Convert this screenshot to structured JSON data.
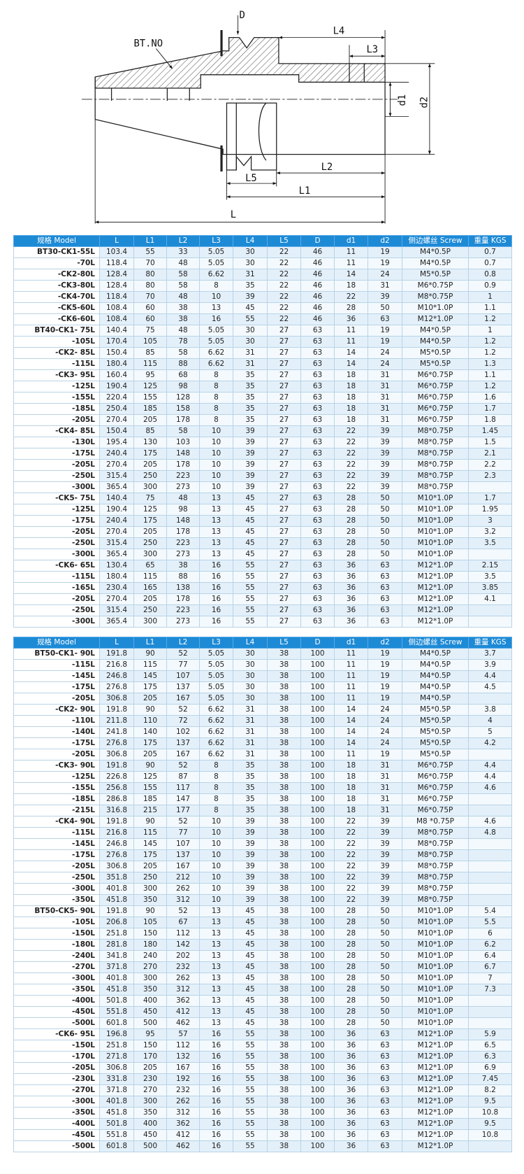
{
  "drawing": {
    "labels": {
      "D": "D",
      "bt_no": "BT.NO",
      "L4": "L4",
      "L3": "L3",
      "d1": "d1",
      "d2": "d2",
      "L2": "L2",
      "L5": "L5",
      "L1": "L1",
      "L": "L"
    }
  },
  "tables": [
    {
      "header": [
        "规格 Model",
        "L",
        "L1",
        "L2",
        "L3",
        "L4",
        "L5",
        "D",
        "d1",
        "d2",
        "侧边螺丝 Screw",
        "重量 KGS"
      ],
      "rows": [
        [
          "BT30-CK1-55L",
          103.4,
          55,
          33,
          5.05,
          30,
          22,
          46,
          11,
          19,
          "M4*0.5P",
          0.7
        ],
        [
          "-70L",
          118.4,
          70,
          48,
          5.05,
          30,
          22,
          46,
          11,
          19,
          "M4*0.5P",
          0.7
        ],
        [
          "-CK2-80L",
          128.4,
          80,
          58,
          6.62,
          31,
          22,
          46,
          14,
          24,
          "M5*0.5P",
          0.8
        ],
        [
          "-CK3-80L",
          128.4,
          80,
          58,
          8,
          35,
          22,
          46,
          18,
          31,
          "M6*0.75P",
          0.9
        ],
        [
          "-CK4-70L",
          118.4,
          70,
          48,
          10,
          39,
          22,
          46,
          22,
          39,
          "M8*0.75P",
          1
        ],
        [
          "-CK5-60L",
          108.4,
          60,
          38,
          13,
          45,
          22,
          46,
          28,
          50,
          "M10*1.0P",
          1.1
        ],
        [
          "-CK6-60L",
          108.4,
          60,
          38,
          16,
          55,
          22,
          46,
          36,
          63,
          "M12*1.0P",
          1.2
        ],
        [
          "BT40-CK1- 75L",
          140.4,
          75,
          48,
          5.05,
          30,
          27,
          63,
          11,
          19,
          "M4*0.5P",
          1
        ],
        [
          "-105L",
          170.4,
          105,
          78,
          5.05,
          30,
          27,
          63,
          11,
          19,
          "M4*0.5P",
          1.2
        ],
        [
          "-CK2- 85L",
          150.4,
          85,
          58,
          6.62,
          31,
          27,
          63,
          14,
          24,
          "M5*0.5P",
          1.2
        ],
        [
          "-115L",
          180.4,
          115,
          88,
          6.62,
          31,
          27,
          63,
          14,
          24,
          "M5*0.5P",
          1.3
        ],
        [
          "-CK3- 95L",
          160.4,
          95,
          68,
          8,
          35,
          27,
          63,
          18,
          31,
          "M6*0.75P",
          1.1
        ],
        [
          "-125L",
          190.4,
          125,
          98,
          8,
          35,
          27,
          63,
          18,
          31,
          "M6*0.75P",
          1.2
        ],
        [
          "-155L",
          220.4,
          155,
          128,
          8,
          35,
          27,
          63,
          18,
          31,
          "M6*0.75P",
          1.6
        ],
        [
          "-185L",
          250.4,
          185,
          158,
          8,
          35,
          27,
          63,
          18,
          31,
          "M6*0.75P",
          1.7
        ],
        [
          "-205L",
          270.4,
          205,
          178,
          8,
          35,
          27,
          63,
          18,
          31,
          "M6*0.75P",
          1.8
        ],
        [
          "-CK4- 85L",
          150.4,
          85,
          58,
          10,
          39,
          27,
          63,
          22,
          39,
          "M8*0.75P",
          1.45
        ],
        [
          "-130L",
          195.4,
          130,
          103,
          10,
          39,
          27,
          63,
          22,
          39,
          "M8*0.75P",
          1.5
        ],
        [
          "-175L",
          240.4,
          175,
          148,
          10,
          39,
          27,
          63,
          22,
          39,
          "M8*0.75P",
          2.1
        ],
        [
          "-205L",
          270.4,
          205,
          178,
          10,
          39,
          27,
          63,
          22,
          39,
          "M8*0.75P",
          2.2
        ],
        [
          "-250L",
          315.4,
          250,
          223,
          10,
          39,
          27,
          63,
          22,
          39,
          "M8*0.75P",
          2.3
        ],
        [
          "-300L",
          365.4,
          300,
          273,
          10,
          39,
          27,
          63,
          22,
          39,
          "M8*0.75P",
          null
        ],
        [
          "-CK5- 75L",
          140.4,
          75,
          48,
          13,
          45,
          27,
          63,
          28,
          50,
          "M10*1.0P",
          1.7
        ],
        [
          "-125L",
          190.4,
          125,
          98,
          13,
          45,
          27,
          63,
          28,
          50,
          "M10*1.0P",
          1.95
        ],
        [
          "-175L",
          240.4,
          175,
          148,
          13,
          45,
          27,
          63,
          28,
          50,
          "M10*1.0P",
          3
        ],
        [
          "-205L",
          270.4,
          205,
          178,
          13,
          45,
          27,
          63,
          28,
          50,
          "M10*1.0P",
          3.2
        ],
        [
          "-250L",
          315.4,
          250,
          223,
          13,
          45,
          27,
          63,
          28,
          50,
          "M10*1.0P",
          3.5
        ],
        [
          "-300L",
          365.4,
          300,
          273,
          13,
          45,
          27,
          63,
          28,
          50,
          "M10*1.0P",
          null
        ],
        [
          "-CK6- 65L",
          130.4,
          65,
          38,
          16,
          55,
          27,
          63,
          36,
          63,
          "M12*1.0P",
          2.15
        ],
        [
          "-115L",
          180.4,
          115,
          88,
          16,
          55,
          27,
          63,
          36,
          63,
          "M12*1.0P",
          3.5
        ],
        [
          "-165L",
          230.4,
          165,
          138,
          16,
          55,
          27,
          63,
          36,
          63,
          "M12*1.0P",
          3.85
        ],
        [
          "-205L",
          270.4,
          205,
          178,
          16,
          55,
          27,
          63,
          36,
          63,
          "M12*1.0P",
          4.1
        ],
        [
          "-250L",
          315.4,
          250,
          223,
          16,
          55,
          27,
          63,
          36,
          63,
          "M12*1.0P",
          null
        ],
        [
          "-300L",
          365.4,
          300,
          273,
          16,
          55,
          27,
          63,
          36,
          63,
          "M12*1.0P",
          null
        ]
      ]
    },
    {
      "header": [
        "规格 Model",
        "L",
        "L1",
        "L2",
        "L3",
        "L4",
        "L5",
        "D",
        "d1",
        "d2",
        "侧边螺丝 Screw",
        "重量 KGS"
      ],
      "rows": [
        [
          "BT50-CK1- 90L",
          191.8,
          90,
          52,
          5.05,
          30,
          38,
          100,
          11,
          19,
          "M4*0.5P",
          3.7
        ],
        [
          "-115L",
          216.8,
          115,
          77,
          5.05,
          30,
          38,
          100,
          11,
          19,
          "M4*0.5P",
          3.9
        ],
        [
          "-145L",
          246.8,
          145,
          107,
          5.05,
          30,
          38,
          100,
          11,
          19,
          "M4*0.5P",
          4.4
        ],
        [
          "-175L",
          276.8,
          175,
          137,
          5.05,
          30,
          38,
          100,
          11,
          19,
          "M4*0.5P",
          4.5
        ],
        [
          "-205L",
          306.8,
          205,
          167,
          5.05,
          30,
          38,
          100,
          11,
          19,
          "M4*0.5P",
          null
        ],
        [
          "-CK2- 90L",
          191.8,
          90,
          52,
          6.62,
          31,
          38,
          100,
          14,
          24,
          "M5*0.5P",
          3.8
        ],
        [
          "-110L",
          211.8,
          110,
          72,
          6.62,
          31,
          38,
          100,
          14,
          24,
          "M5*0.5P",
          4
        ],
        [
          "-140L",
          241.8,
          140,
          102,
          6.62,
          31,
          38,
          100,
          14,
          24,
          "M5*0.5P",
          5
        ],
        [
          "-175L",
          276.8,
          175,
          137,
          6.62,
          31,
          38,
          100,
          14,
          24,
          "M5*0.5P",
          4.2
        ],
        [
          "-205L",
          306.8,
          205,
          167,
          6.62,
          31,
          38,
          100,
          11,
          19,
          "M5*0.5P",
          null
        ],
        [
          "-CK3- 90L",
          191.8,
          90,
          52,
          8,
          35,
          38,
          100,
          18,
          31,
          "M6*0.75P",
          4.4
        ],
        [
          "-125L",
          226.8,
          125,
          87,
          8,
          35,
          38,
          100,
          18,
          31,
          "M6*0.75P",
          4.4
        ],
        [
          "-155L",
          256.8,
          155,
          117,
          8,
          35,
          38,
          100,
          18,
          31,
          "M6*0.75P",
          4.6
        ],
        [
          "-185L",
          286.8,
          185,
          147,
          8,
          35,
          38,
          100,
          18,
          31,
          "M6*0.75P",
          null
        ],
        [
          "-215L",
          316.8,
          215,
          177,
          8,
          35,
          38,
          100,
          18,
          31,
          "M6*0.75P",
          null
        ],
        [
          "-CK4- 90L",
          191.8,
          90,
          52,
          10,
          39,
          38,
          100,
          22,
          39,
          "M8 *0.75P",
          4.6
        ],
        [
          "-115L",
          216.8,
          115,
          77,
          10,
          39,
          38,
          100,
          22,
          39,
          "M8*0.75P",
          4.8
        ],
        [
          "-145L",
          246.8,
          145,
          107,
          10,
          39,
          38,
          100,
          22,
          39,
          "M8*0.75P",
          null
        ],
        [
          "-175L",
          276.8,
          175,
          137,
          10,
          39,
          38,
          100,
          22,
          39,
          "M8*0.75P",
          null
        ],
        [
          "-205L",
          306.8,
          205,
          167,
          10,
          39,
          38,
          100,
          22,
          39,
          "M8*0.75P",
          null
        ],
        [
          "-250L",
          351.8,
          250,
          212,
          10,
          39,
          38,
          100,
          22,
          39,
          "M8*0.75P",
          null
        ],
        [
          "-300L",
          401.8,
          300,
          262,
          10,
          39,
          38,
          100,
          22,
          39,
          "M8*0.75P",
          null
        ],
        [
          "-350L",
          451.8,
          350,
          312,
          10,
          39,
          38,
          100,
          22,
          39,
          "M8*0.75P",
          null
        ],
        [
          "BT50-CK5- 90L",
          191.8,
          90,
          52,
          13,
          45,
          38,
          100,
          28,
          50,
          "M10*1.0P",
          5.4
        ],
        [
          "-105L",
          206.8,
          105,
          67,
          13,
          45,
          38,
          100,
          28,
          50,
          "M10*1.0P",
          5.5
        ],
        [
          "-150L",
          251.8,
          150,
          112,
          13,
          45,
          38,
          100,
          28,
          50,
          "M10*1.0P",
          6
        ],
        [
          "-180L",
          281.8,
          180,
          142,
          13,
          45,
          38,
          100,
          28,
          50,
          "M10*1.0P",
          6.2
        ],
        [
          "-240L",
          341.8,
          240,
          202,
          13,
          45,
          38,
          100,
          28,
          50,
          "M10*1.0P",
          6.4
        ],
        [
          "-270L",
          371.8,
          270,
          232,
          13,
          45,
          38,
          100,
          28,
          50,
          "M10*1.0P",
          6.7
        ],
        [
          "-300L",
          401.8,
          300,
          262,
          13,
          45,
          38,
          100,
          28,
          50,
          "M10*1.0P",
          7
        ],
        [
          "-350L",
          451.8,
          350,
          312,
          13,
          45,
          38,
          100,
          28,
          50,
          "M10*1.0P",
          7.3
        ],
        [
          "-400L",
          501.8,
          400,
          362,
          13,
          45,
          38,
          100,
          28,
          50,
          "M10*1.0P",
          null
        ],
        [
          "-450L",
          551.8,
          450,
          412,
          13,
          45,
          38,
          100,
          28,
          50,
          "M10*1.0P",
          null
        ],
        [
          "-500L",
          601.8,
          500,
          462,
          13,
          45,
          38,
          100,
          28,
          50,
          "M10*1.0P",
          null
        ],
        [
          "-CK6- 95L",
          196.8,
          95,
          57,
          16,
          55,
          38,
          100,
          36,
          63,
          "M12*1.0P",
          5.9
        ],
        [
          "-150L",
          251.8,
          150,
          112,
          16,
          55,
          38,
          100,
          36,
          63,
          "M12*1.0P",
          6.5
        ],
        [
          "-170L",
          271.8,
          170,
          132,
          16,
          55,
          38,
          100,
          36,
          63,
          "M12*1.0P",
          6.3
        ],
        [
          "-205L",
          306.8,
          205,
          167,
          16,
          55,
          38,
          100,
          36,
          63,
          "M12*1.0P",
          6.9
        ],
        [
          "-230L",
          331.8,
          230,
          192,
          16,
          55,
          38,
          100,
          36,
          63,
          "M12*1.0P",
          7.45
        ],
        [
          "-270L",
          371.8,
          270,
          232,
          16,
          55,
          38,
          100,
          36,
          63,
          "M12*1.0P",
          8.2
        ],
        [
          "-300L",
          401.8,
          300,
          262,
          16,
          55,
          38,
          100,
          36,
          63,
          "M12*1.0P",
          9.5
        ],
        [
          "-350L",
          451.8,
          350,
          312,
          16,
          55,
          38,
          100,
          36,
          63,
          "M12*1.0P",
          10.8
        ],
        [
          "-400L",
          501.8,
          400,
          362,
          16,
          55,
          38,
          100,
          36,
          63,
          "M12*1.0P",
          9.5
        ],
        [
          "-450L",
          551.8,
          450,
          412,
          16,
          55,
          38,
          100,
          36,
          63,
          "M12*1.0P",
          10.8
        ],
        [
          "-500L",
          601.8,
          500,
          462,
          16,
          55,
          38,
          100,
          36,
          63,
          "M12*1.0P",
          null
        ]
      ]
    }
  ]
}
